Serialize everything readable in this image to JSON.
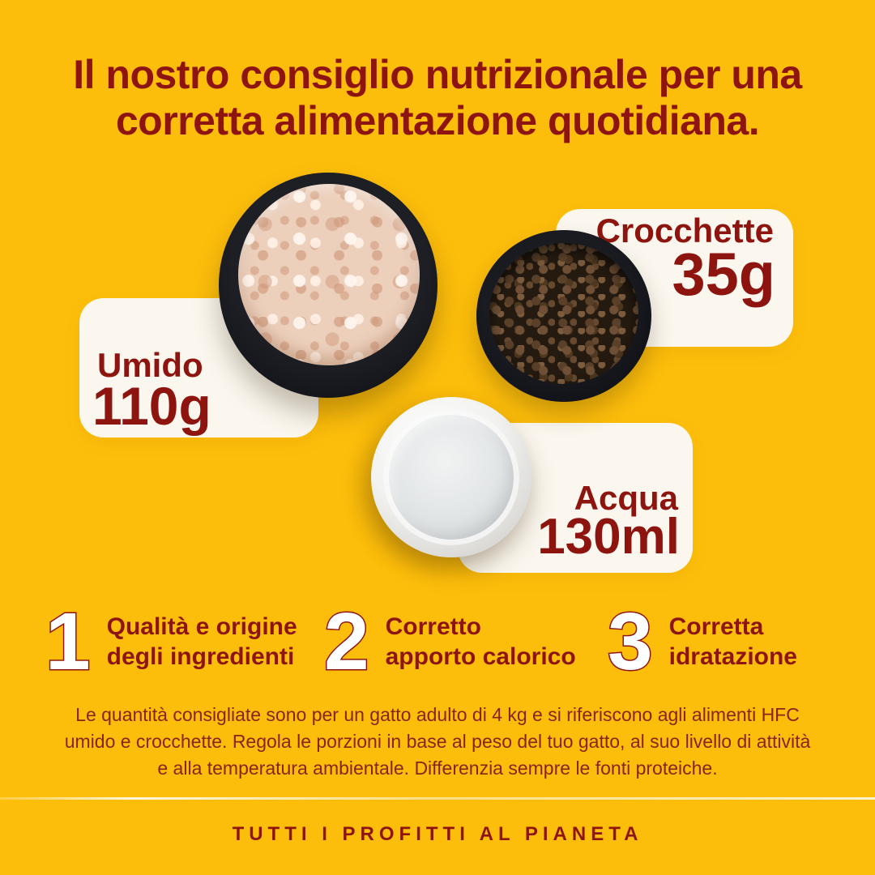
{
  "colors": {
    "background": "#FDBE0B",
    "accent": "#8E150F",
    "card": "#FBF7EE",
    "paragraph": "#8A2318"
  },
  "heading": {
    "line1": "Il nostro consiglio nutrizionale per una",
    "line2": "corretta alimentazione quotidiana."
  },
  "portions": {
    "umido": {
      "label": "Umido",
      "amount": "110g"
    },
    "crocchette": {
      "label": "Crocchette",
      "amount": "35g"
    },
    "acqua": {
      "label": "Acqua",
      "amount": "130ml"
    }
  },
  "points": [
    {
      "number": "1",
      "line1": "Qualità e origine",
      "line2": "degli ingredienti"
    },
    {
      "number": "2",
      "line1": "Corretto",
      "line2": "apporto calorico"
    },
    {
      "number": "3",
      "line1": "Corretta",
      "line2": "idratazione"
    }
  ],
  "disclaimer_lines": [
    "Le quantità consigliate sono per un gatto adulto di 4 kg e si riferiscono agli alimenti HFC",
    "umido e crocchette. Regola le porzioni in base al peso del tuo gatto, al suo livello di attività",
    "e alla temperatura ambientale. Differenzia sempre le fonti proteiche."
  ],
  "footer": {
    "text": "TUTTI I PROFITTI AL PIANETA"
  }
}
